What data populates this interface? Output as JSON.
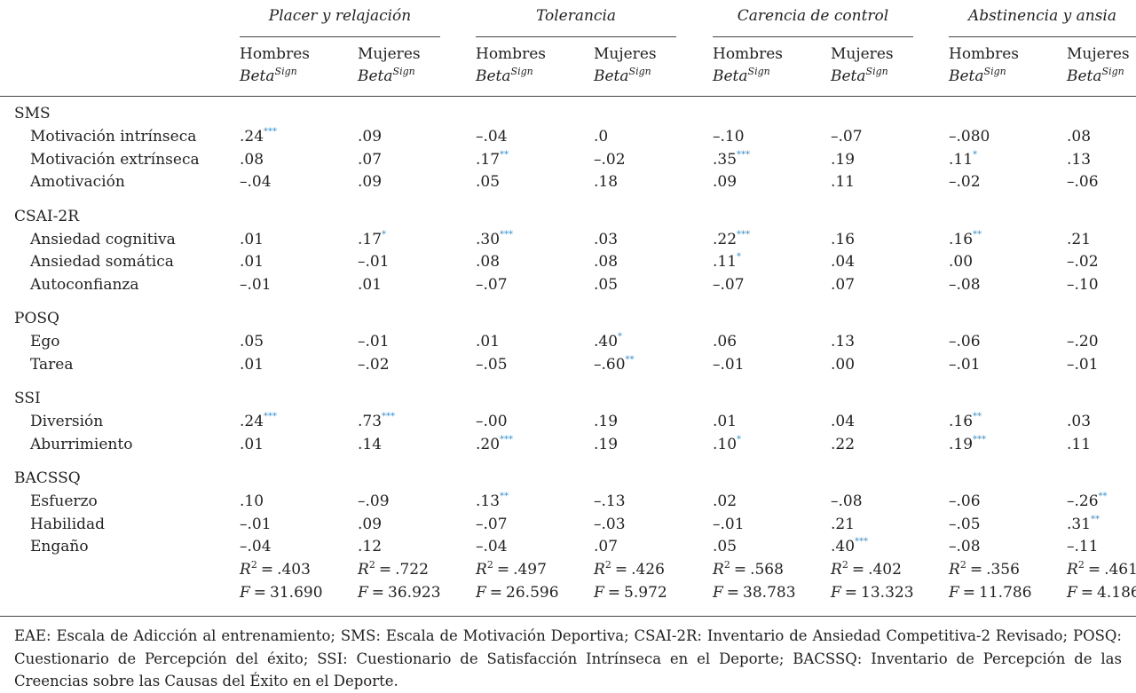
{
  "table": {
    "groups": [
      "Placer y relajación",
      "Tolerancia",
      "Carencia de control",
      "Abstinencia y ansia"
    ],
    "subgroups": [
      "Hombres",
      "Mujeres"
    ],
    "stat": "Beta",
    "stat_sup": "Sign",
    "sections": [
      {
        "name": "SMS",
        "rows": [
          {
            "label": "Motivación intrínseca",
            "values": [
              ".24",
              ".09",
              "–.04",
              ".0",
              "–.10",
              "–.07",
              "–.080",
              ".08"
            ],
            "sig": [
              "***",
              null,
              null,
              null,
              null,
              null,
              null,
              null
            ]
          },
          {
            "label": "Motivación extrínseca",
            "values": [
              ".08",
              ".07",
              ".17",
              "–.02",
              ".35",
              ".19",
              ".11",
              ".13"
            ],
            "sig": [
              null,
              null,
              "**",
              null,
              "***",
              null,
              "*",
              null
            ]
          },
          {
            "label": "Amotivación",
            "values": [
              "–.04",
              ".09",
              ".05",
              ".18",
              ".09",
              ".11",
              "–.02",
              "–.06"
            ],
            "sig": [
              null,
              null,
              null,
              null,
              null,
              null,
              null,
              null
            ]
          }
        ]
      },
      {
        "name": "CSAI-2R",
        "rows": [
          {
            "label": "Ansiedad cognitiva",
            "values": [
              ".01",
              ".17",
              ".30",
              ".03",
              ".22",
              ".16",
              ".16",
              ".21"
            ],
            "sig": [
              null,
              "*",
              "***",
              null,
              "***",
              null,
              "**",
              null
            ]
          },
          {
            "label": "Ansiedad somática",
            "values": [
              ".01",
              "–.01",
              ".08",
              ".08",
              ".11",
              ".04",
              ".00",
              "–.02"
            ],
            "sig": [
              null,
              null,
              null,
              null,
              "*",
              null,
              null,
              null
            ]
          },
          {
            "label": "Autoconfianza",
            "values": [
              "–.01",
              ".01",
              "–.07",
              ".05",
              "–.07",
              ".07",
              "–.08",
              "–.10"
            ],
            "sig": [
              null,
              null,
              null,
              null,
              null,
              null,
              null,
              null
            ]
          }
        ]
      },
      {
        "name": "POSQ",
        "rows": [
          {
            "label": "Ego",
            "values": [
              ".05",
              "–.01",
              ".01",
              ".40",
              ".06",
              ".13",
              "–.06",
              "–.20"
            ],
            "sig": [
              null,
              null,
              null,
              "*",
              null,
              null,
              null,
              null
            ]
          },
          {
            "label": "Tarea",
            "values": [
              ".01",
              "–.02",
              "–.05",
              "–.60",
              "–.01",
              ".00",
              "–.01",
              "–.01"
            ],
            "sig": [
              null,
              null,
              null,
              "**",
              null,
              null,
              null,
              null
            ]
          }
        ]
      },
      {
        "name": "SSI",
        "rows": [
          {
            "label": "Diversión",
            "values": [
              ".24",
              ".73",
              "–.00",
              ".19",
              ".01",
              ".04",
              ".16",
              ".03"
            ],
            "sig": [
              "***",
              "***",
              null,
              null,
              null,
              null,
              "**",
              null
            ]
          },
          {
            "label": "Aburrimiento",
            "values": [
              ".01",
              ".14",
              ".20",
              ".19",
              ".10",
              ".22",
              ".19",
              ".11"
            ],
            "sig": [
              null,
              null,
              "***",
              null,
              "*",
              null,
              "***",
              null
            ]
          }
        ]
      },
      {
        "name": "BACSSQ",
        "rows": [
          {
            "label": "Esfuerzo",
            "values": [
              ".10",
              "–.09",
              ".13",
              "–.13",
              ".02",
              "–.08",
              "–.06",
              "–.26"
            ],
            "sig": [
              null,
              null,
              "**",
              null,
              null,
              null,
              null,
              "**"
            ]
          },
          {
            "label": "Habilidad",
            "values": [
              "–.01",
              ".09",
              "–.07",
              "–.03",
              "–.01",
              ".21",
              "–.05",
              ".31"
            ],
            "sig": [
              null,
              null,
              null,
              null,
              null,
              null,
              null,
              "**"
            ]
          },
          {
            "label": "Engaño",
            "values": [
              "–.04",
              ".12",
              "–.04",
              ".07",
              ".05",
              ".40",
              "–.08",
              "–.11"
            ],
            "sig": [
              null,
              null,
              null,
              null,
              null,
              "***",
              null,
              null
            ]
          }
        ]
      }
    ],
    "equals": "=",
    "r2_symbol": "R",
    "r2_exp": "2",
    "r2": [
      ".403",
      ".722",
      ".497",
      ".426",
      ".568",
      ".402",
      ".356",
      ".461"
    ],
    "f_symbol": "F",
    "f": [
      "31.690",
      "36.923",
      "26.596",
      "5.972",
      "38.783",
      "13.323",
      "11.786",
      "4.186"
    ]
  },
  "footnote": "EAE: Escala de Adicción al entrenamiento; SMS: Escala de Motivación Deportiva; CSAI-2R: Inventario de Ansiedad Competitiva-2 Revisado; POSQ: Cuestionario de Percepción del éxito; SSI: Cuestionario de Satisfacción Intrínseca en el Deporte; BACSSQ: Inventario de Percepción de las Creencias sobre las Causas del Éxito en el Deporte."
}
